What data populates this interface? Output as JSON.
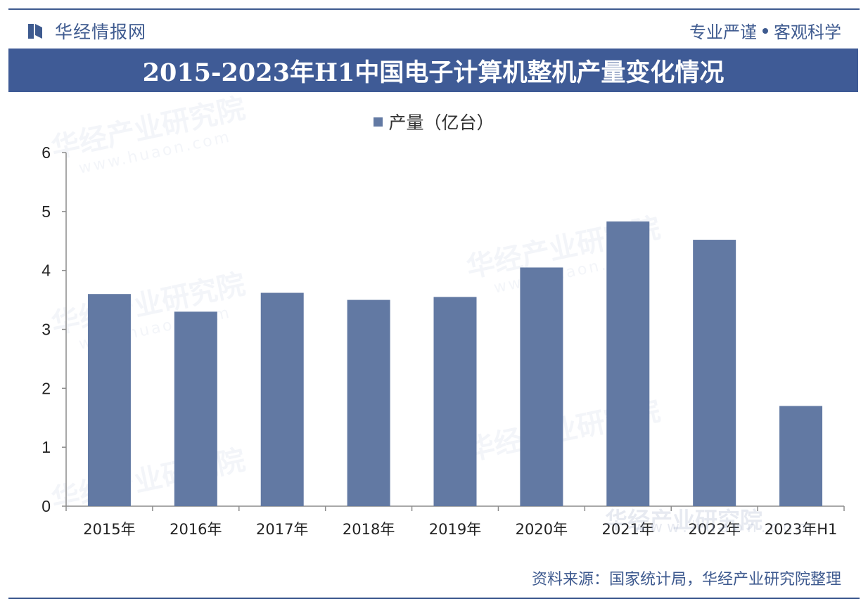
{
  "header": {
    "brand_name": "华经情报网",
    "slogan_left": "专业严谨",
    "slogan_right": "客观科学",
    "title": "2015-2023年H1中国电子计算机整机产量变化情况"
  },
  "watermark": {
    "text": "华经产业研究院",
    "url": "www.huaon.com"
  },
  "footer": {
    "source": "资料来源：国家统计局，华经产业研究院整理"
  },
  "colors": {
    "brand": "#3e5a8f",
    "bar": "#6279a3",
    "banner": "#3f5b96"
  },
  "chart_data": {
    "type": "bar",
    "title": "2015-2023年H1中国电子计算机整机产量变化情况",
    "categories": [
      "2015年",
      "2016年",
      "2017年",
      "2018年",
      "2019年",
      "2020年",
      "2021年",
      "2022年",
      "2023年H1"
    ],
    "series": [
      {
        "name": "产量（亿台）",
        "values": [
          3.6,
          3.3,
          3.62,
          3.5,
          3.55,
          4.05,
          4.83,
          4.52,
          1.7
        ]
      }
    ],
    "ylim": [
      0,
      6
    ],
    "yticks": [
      0,
      1,
      2,
      3,
      4,
      5,
      6
    ],
    "grid": false,
    "legend_position": "top-center"
  }
}
